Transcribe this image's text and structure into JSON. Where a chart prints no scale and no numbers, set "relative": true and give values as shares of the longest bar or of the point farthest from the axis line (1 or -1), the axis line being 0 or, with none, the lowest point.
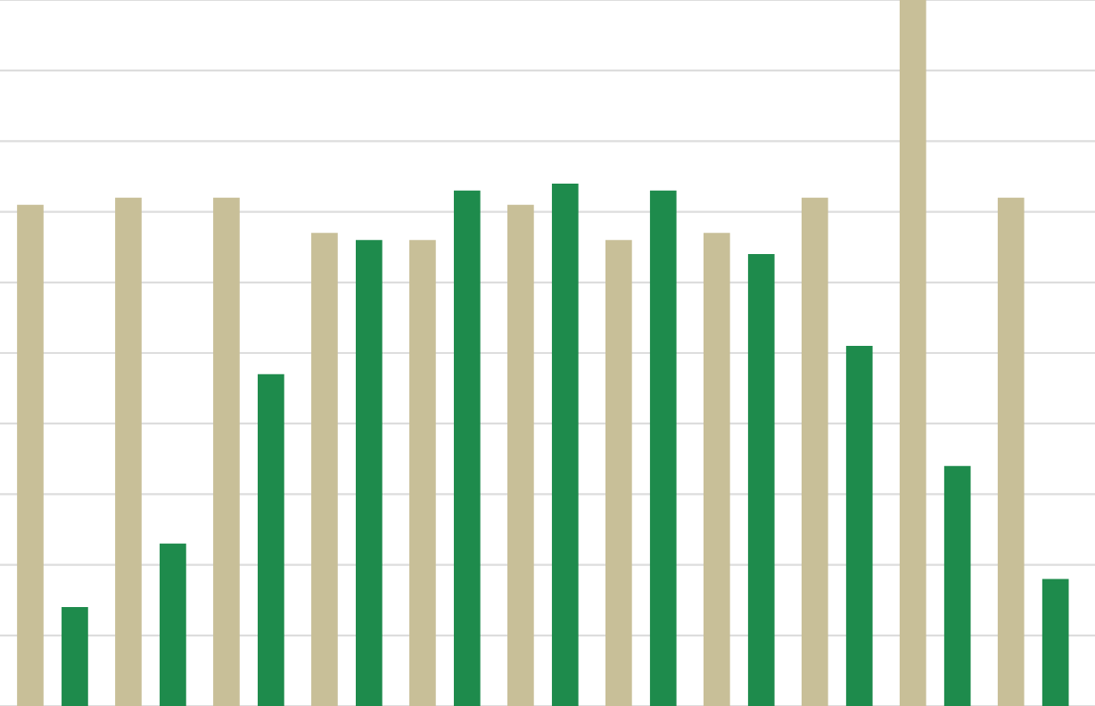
{
  "chart_data": {
    "type": "bar",
    "relative": true,
    "grid": "y",
    "legend": false,
    "categories": [
      null,
      null,
      null,
      null,
      null,
      null,
      null,
      null,
      null,
      null,
      null
    ],
    "series": [
      {
        "color": "#c8bf98",
        "values": [
          0.71,
          0.72,
          0.72,
          0.67,
          0.66,
          0.71,
          0.66,
          0.67,
          0.72,
          1,
          0.72
        ]
      },
      {
        "color": "#1e8b4c",
        "values": [
          0.14,
          0.23,
          0.47,
          0.66,
          0.73,
          0.74,
          0.73,
          0.64,
          0.51,
          0.34,
          0.18
        ]
      }
    ]
  }
}
